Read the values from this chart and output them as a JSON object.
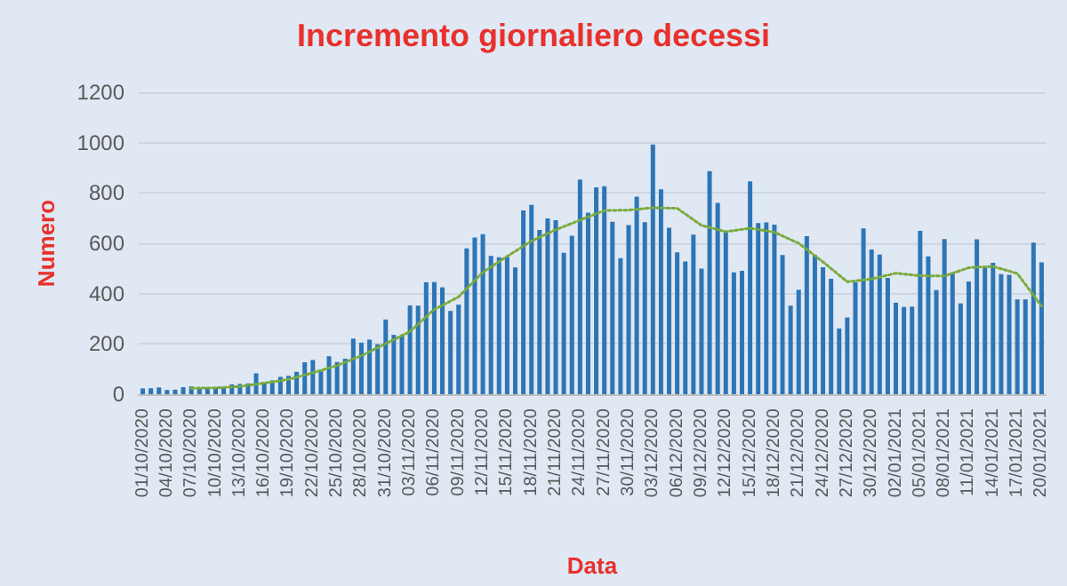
{
  "chart_data": {
    "type": "bar",
    "title": "Incremento giornaliero decessi",
    "xlabel": "Data",
    "ylabel": "Numero",
    "categories": [
      "01/10/2020",
      null,
      null,
      "04/10/2020",
      null,
      null,
      "07/10/2020",
      null,
      null,
      "10/10/2020",
      null,
      null,
      "13/10/2020",
      null,
      null,
      "16/10/2020",
      null,
      null,
      "19/10/2020",
      null,
      null,
      "22/10/2020",
      null,
      null,
      "25/10/2020",
      null,
      null,
      "28/10/2020",
      null,
      null,
      "31/10/2020",
      null,
      null,
      "03/11/2020",
      null,
      null,
      "06/11/2020",
      null,
      null,
      "09/11/2020",
      null,
      null,
      "12/11/2020",
      null,
      null,
      "15/11/2020",
      null,
      null,
      "18/11/2020",
      null,
      null,
      "21/11/2020",
      null,
      null,
      "24/11/2020",
      null,
      null,
      "27/11/2020",
      null,
      null,
      "30/11/2020",
      null,
      null,
      "03/12/2020",
      null,
      null,
      "06/12/2020",
      null,
      null,
      "09/12/2020",
      null,
      null,
      "12/12/2020",
      null,
      null,
      "15/12/2020",
      null,
      null,
      "18/12/2020",
      null,
      null,
      "21/12/2020",
      null,
      null,
      "24/12/2020",
      null,
      null,
      "27/12/2020",
      null,
      null,
      "30/12/2020",
      null,
      null,
      "02/01/2021",
      null,
      null,
      "05/01/2021",
      null,
      null,
      "08/01/2021",
      null,
      null,
      "11/01/2021",
      null,
      null,
      "14/01/2021",
      null,
      null,
      "17/01/2021",
      null,
      null,
      "20/01/2021"
    ],
    "series": [
      {
        "color": "#2e75b6",
        "values": [
          23,
          24,
          27,
          17,
          18,
          28,
          31,
          22,
          28,
          29,
          26,
          39,
          41,
          43,
          83,
          47,
          55,
          69,
          73,
          89,
          127,
          136,
          91,
          151,
          128,
          141,
          221,
          205,
          217,
          199,
          297,
          236,
          233,
          353,
          352,
          445,
          446,
          425,
          331,
          356,
          580,
          623,
          636,
          550,
          544,
          546,
          504,
          731,
          753,
          653,
          699,
          692,
          562,
          630,
          853,
          722,
          822,
          827,
          686,
          541,
          672,
          785,
          684,
          993,
          814,
          662,
          564,
          528,
          634,
          499,
          887,
          761,
          649,
          484,
          491,
          846,
          680,
          683,
          674,
          553,
          352,
          415,
          628,
          553,
          505,
          459,
          261,
          305,
          445,
          659,
          575,
          555,
          462,
          364,
          347,
          348,
          649,
          548,
          414,
          617,
          483,
          361,
          448,
          616,
          507,
          522,
          477,
          475,
          377,
          377,
          603,
          524
        ]
      },
      {
        "type": "line",
        "color": "#7aaa3c",
        "line_style": "dotted",
        "marker": "none",
        "x": [
          "07/10/2020",
          "10/10/2020",
          "13/10/2020",
          "16/10/2020",
          "19/10/2020",
          "22/10/2020",
          "25/10/2020",
          "28/10/2020",
          "31/10/2020",
          "03/11/2020",
          "06/11/2020",
          "09/11/2020",
          "12/11/2020",
          "15/11/2020",
          "18/11/2020",
          "21/11/2020",
          "24/11/2020",
          "27/11/2020",
          "30/11/2020",
          "03/12/2020",
          "06/12/2020",
          "09/12/2020",
          "12/12/2020",
          "15/12/2020",
          "18/12/2020",
          "21/12/2020",
          "24/12/2020",
          "27/12/2020",
          "30/12/2020",
          "02/01/2021",
          "05/01/2021",
          "08/01/2021",
          "11/01/2021",
          "14/01/2021",
          "17/01/2021",
          "20/01/2021"
        ],
        "values": [
          24,
          25,
          31,
          44,
          59,
          85,
          114,
          153,
          201,
          249,
          337,
          387,
          485,
          548,
          609,
          654,
          692,
          730,
          732,
          741,
          739,
          671,
          646,
          660,
          644,
          600,
          526,
          447,
          458,
          481,
          471,
          470,
          503,
          508,
          480,
          350
        ]
      }
    ],
    "ylim": [
      0,
      1200
    ],
    "yticks": [
      0,
      200,
      400,
      600,
      800,
      1000,
      1200
    ],
    "grid": "y"
  }
}
